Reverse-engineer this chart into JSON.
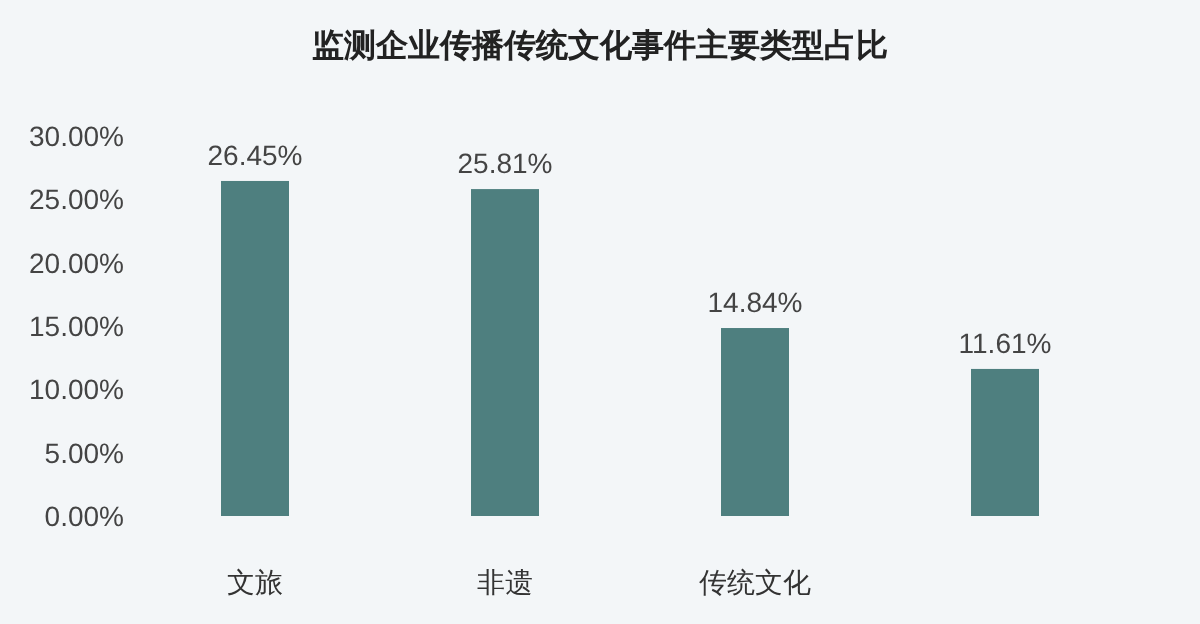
{
  "chart_data": {
    "type": "bar",
    "title": "监测企业传播传统文化事件主要类型占比",
    "categories": [
      "文旅",
      "非遗",
      "传统文化",
      null
    ],
    "values": [
      26.45,
      25.81,
      14.84,
      11.61
    ],
    "value_labels": [
      "26.45%",
      "25.81%",
      "14.84%",
      "11.61%"
    ],
    "color": "#4e7f7f",
    "ylim": [
      0,
      30
    ],
    "yticks": [
      {
        "value": 0,
        "label": "0.00%"
      },
      {
        "value": 5,
        "label": "5.00%"
      },
      {
        "value": 10,
        "label": "10.00%"
      },
      {
        "value": 15,
        "label": "15.00%"
      },
      {
        "value": 20,
        "label": "20.00%"
      },
      {
        "value": 25,
        "label": "25.00%"
      },
      {
        "value": 30,
        "label": "30.00%"
      }
    ],
    "grid": false
  }
}
